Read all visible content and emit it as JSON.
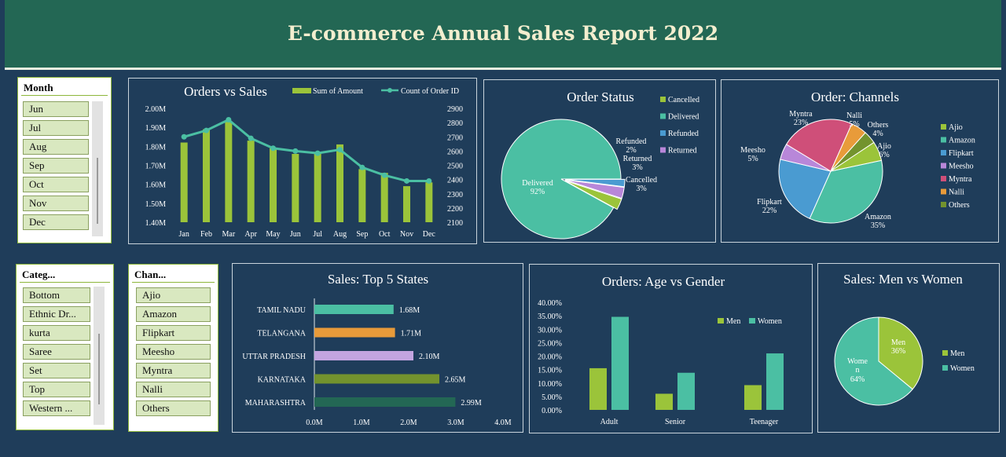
{
  "header": {
    "title": "E-commerce Annual Sales Report 2022"
  },
  "slicers": {
    "month": {
      "title": "Month",
      "items": [
        "Jun",
        "Jul",
        "Aug",
        "Sep",
        "Oct",
        "Nov",
        "Dec"
      ]
    },
    "category": {
      "title": "Categ...",
      "items": [
        "Bottom",
        "Ethnic Dr...",
        "kurta",
        "Saree",
        "Set",
        "Top",
        "Western ..."
      ]
    },
    "channel": {
      "title": "Chan...",
      "items": [
        "Ajio",
        "Amazon",
        "Flipkart",
        "Meesho",
        "Myntra",
        "Nalli",
        "Others"
      ]
    }
  },
  "colors": {
    "background": "#1f3d5a",
    "header": "#236754",
    "bar_green": "#9bc43a",
    "line_teal": "#4bbfa3",
    "teal": "#4bbfa3",
    "blue": "#4a9bd1",
    "purple": "#b887d9",
    "pink": "#cf4f79",
    "orange": "#e89b3a",
    "olive": "#73932e",
    "dark_green": "#236754",
    "lavender": "#c3a5e0"
  },
  "chart_data": [
    {
      "id": "orders-vs-sales",
      "type": "bar",
      "title": "Orders vs Sales",
      "categories": [
        "Jan",
        "Feb",
        "Mar",
        "Apr",
        "May",
        "Jun",
        "Jul",
        "Aug",
        "Sep",
        "Oct",
        "Nov",
        "Dec"
      ],
      "series": [
        {
          "name": "Sum of Amount",
          "type": "bar",
          "axis": "left",
          "values": [
            1.82,
            1.89,
            1.93,
            1.83,
            1.79,
            1.76,
            1.77,
            1.81,
            1.68,
            1.66,
            1.59,
            1.61
          ]
        },
        {
          "name": "Count of Order ID",
          "type": "line",
          "axis": "right",
          "values": [
            2700,
            2745,
            2820,
            2690,
            2620,
            2600,
            2585,
            2610,
            2485,
            2430,
            2390,
            2390
          ]
        }
      ],
      "left_ticks": [
        "2.00M",
        "1.90M",
        "1.80M",
        "1.70M",
        "1.60M",
        "1.50M",
        "1.40M"
      ],
      "right_ticks": [
        "2900",
        "2800",
        "2700",
        "2600",
        "2500",
        "2400",
        "2300",
        "2200",
        "2100"
      ],
      "ylim_left": [
        1.4,
        2.0
      ],
      "ylim_right": [
        2100,
        2900
      ],
      "legend": "top-right"
    },
    {
      "id": "order-status",
      "type": "pie",
      "title": "Order Status",
      "labels": [
        "Delivered",
        "Refunded",
        "Returned",
        "Cancelled"
      ],
      "values": [
        92,
        2,
        3,
        3
      ],
      "value_labels": [
        "92%",
        "2%",
        "3%",
        "3%"
      ],
      "legend_entries": [
        "Cancelled",
        "Delivered",
        "Refunded",
        "Returned"
      ],
      "legend": "right"
    },
    {
      "id": "order-channels",
      "type": "pie",
      "title": "Order: Channels",
      "labels": [
        "Amazon",
        "Flipkart",
        "Meesho",
        "Myntra",
        "Nalli",
        "Others",
        "Ajio"
      ],
      "values": [
        35,
        22,
        5,
        23,
        5,
        4,
        6
      ],
      "value_labels": [
        "35%",
        "22%",
        "5%",
        "23%",
        "5%",
        "4%",
        "6%"
      ],
      "legend_entries": [
        "Ajio",
        "Amazon",
        "Flipkart",
        "Meesho",
        "Myntra",
        "Nalli",
        "Others"
      ],
      "legend": "right"
    },
    {
      "id": "top-states",
      "type": "bar",
      "orientation": "horizontal",
      "title": "Sales: Top 5 States",
      "categories": [
        "TAMIL NADU",
        "TELANGANA",
        "UTTAR PRADESH",
        "KARNATAKA",
        "MAHARASHTRA"
      ],
      "values": [
        1.68,
        1.71,
        2.1,
        2.65,
        2.99
      ],
      "value_labels": [
        "1.68M",
        "1.71M",
        "2.10M",
        "2.65M",
        "2.99M"
      ],
      "x_ticks": [
        "0.0M",
        "1.0M",
        "2.0M",
        "3.0M",
        "4.0M"
      ],
      "xlim": [
        0,
        4
      ]
    },
    {
      "id": "age-gender",
      "type": "bar",
      "title": "Orders: Age vs Gender",
      "categories": [
        "Adult",
        "Senior",
        "Teenager"
      ],
      "series": [
        {
          "name": "Men",
          "values": [
            15.5,
            6.0,
            9.2
          ]
        },
        {
          "name": "Women",
          "values": [
            34.6,
            13.8,
            21.0
          ]
        }
      ],
      "y_ticks": [
        "40.00%",
        "35.00%",
        "30.00%",
        "25.00%",
        "20.00%",
        "15.00%",
        "10.00%",
        "5.00%",
        "0.00%"
      ],
      "ylim": [
        0,
        40
      ],
      "legend": "top-right"
    },
    {
      "id": "men-vs-women",
      "type": "pie",
      "title": "Sales: Men vs Women",
      "labels": [
        "Men",
        "Women"
      ],
      "label_text": [
        "Men",
        "Wome\nn"
      ],
      "values": [
        36,
        64
      ],
      "value_labels": [
        "36%",
        "64%"
      ],
      "legend_entries": [
        "Men",
        "Women"
      ],
      "legend": "right"
    }
  ]
}
